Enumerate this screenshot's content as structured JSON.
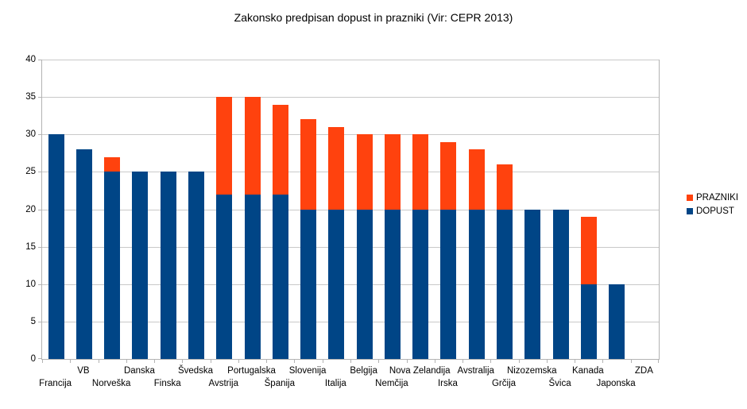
{
  "chart_data": {
    "type": "bar",
    "stacked": true,
    "title": "Zakonsko predpisan dopust in prazniki (Vir: CEPR 2013)",
    "categories": [
      "Francija",
      "VB",
      "Norveška",
      "Danska",
      "Finska",
      "Švedska",
      "Avstrija",
      "Portugalska",
      "Španija",
      "Slovenija",
      "Italija",
      "Belgija",
      "Nemčija",
      "Nova Zelandija",
      "Irska",
      "Avstralija",
      "Grčija",
      "Nizozemska",
      "Švica",
      "Kanada",
      "Japonska",
      "ZDA"
    ],
    "series": [
      {
        "name": "PRAZNIKI",
        "color": "#FF420E",
        "values": [
          0,
          0,
          2,
          0,
          0,
          0,
          13,
          13,
          12,
          12,
          11,
          10,
          10,
          10,
          9,
          8,
          6,
          0,
          0,
          9,
          0,
          0
        ]
      },
      {
        "name": "DOPUST",
        "color": "#004586",
        "values": [
          30,
          28,
          25,
          25,
          25,
          25,
          22,
          22,
          22,
          20,
          20,
          20,
          20,
          20,
          20,
          20,
          20,
          20,
          20,
          10,
          10,
          0
        ]
      }
    ],
    "stack_order": [
      "DOPUST",
      "PRAZNIKI"
    ],
    "totals": [
      30,
      28,
      27,
      25,
      25,
      25,
      35,
      35,
      34,
      32,
      31,
      30,
      30,
      30,
      29,
      28,
      26,
      20,
      20,
      19,
      10,
      0
    ],
    "xlabel": "",
    "ylabel": "",
    "ylim": [
      0,
      40
    ],
    "y_ticks": [
      0,
      5,
      10,
      15,
      20,
      25,
      30,
      35,
      40
    ],
    "grid": true,
    "legend_position": "right",
    "colors": {
      "grid": "#c9c9c9",
      "axis": "#b3b3b3",
      "background": "#ffffff",
      "text": "#000000"
    }
  }
}
